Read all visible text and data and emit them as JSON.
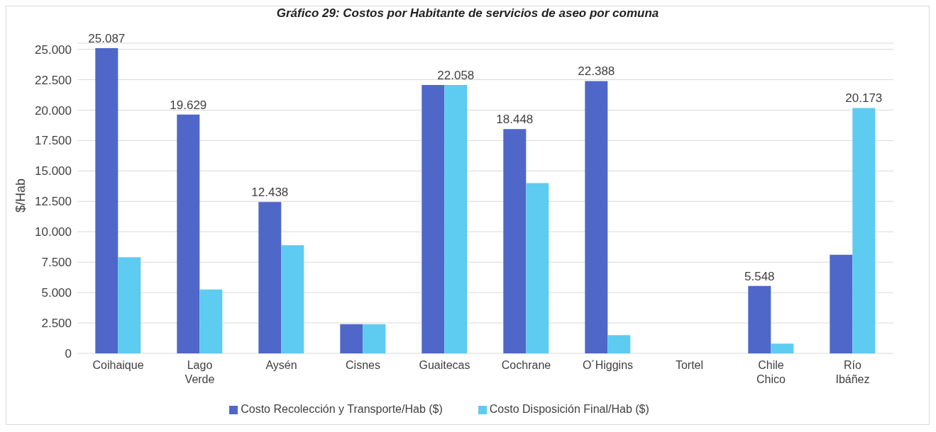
{
  "chart_data": {
    "type": "bar",
    "title": "Gráfico 29: Costos por Habitante de servicios de aseo por comuna",
    "ylabel": "$/Hab",
    "categories": [
      "Coihaique",
      "Lago Verde",
      "Aysén",
      "Cisnes",
      "Guaitecas",
      "Cochrane",
      "O´Higgins",
      "Tortel",
      "Chile Chico",
      "Río Ibáñez"
    ],
    "series": [
      {
        "name": "Costo Recolección y Transporte/Hab ($)",
        "color": "#4f67c8",
        "values": [
          25087,
          19629,
          12438,
          2400,
          22058,
          18448,
          22388,
          null,
          5548,
          8100
        ],
        "value_labels": [
          "25.087",
          "19.629",
          "12.438",
          null,
          null,
          "18.448",
          "22.388",
          null,
          "5.548",
          null
        ]
      },
      {
        "name": "Costo Disposición Final/Hab ($)",
        "color": "#5ecbf0",
        "values": [
          7900,
          5250,
          8900,
          2400,
          22058,
          14000,
          1500,
          null,
          800,
          20173
        ],
        "value_labels": [
          null,
          null,
          null,
          null,
          "22.058",
          null,
          null,
          null,
          null,
          "20.173"
        ]
      }
    ],
    "ylim": [
      0,
      25500
    ],
    "yticks": [
      {
        "value": 0,
        "label": "0"
      },
      {
        "value": 2500,
        "label": "2.500"
      },
      {
        "value": 5000,
        "label": "5.000"
      },
      {
        "value": 7500,
        "label": "7.500"
      },
      {
        "value": 10000,
        "label": "10.000"
      },
      {
        "value": 12500,
        "label": "12.500"
      },
      {
        "value": 15000,
        "label": "15.000"
      },
      {
        "value": 17500,
        "label": "17.500"
      },
      {
        "value": 20000,
        "label": "20.000"
      },
      {
        "value": 22500,
        "label": "22.500"
      },
      {
        "value": 25000,
        "label": "25.000"
      }
    ],
    "grid": "y",
    "legend": "bottom"
  }
}
